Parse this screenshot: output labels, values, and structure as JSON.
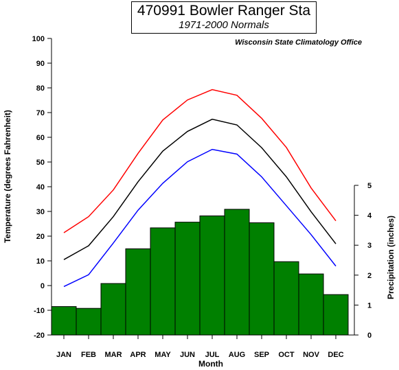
{
  "chart_data": {
    "type": "bar+line",
    "title": "470991 Bowler Ranger Sta",
    "subtitle": "1971-2000 Normals",
    "source": "Wisconsin State Climatology Office",
    "xlabel": "Month",
    "ylabel_left": "Temperature (degrees Fahrenheit)",
    "ylabel_right": "Precipitation (inches)",
    "categories": [
      "JAN",
      "FEB",
      "MAR",
      "APR",
      "MAY",
      "JUN",
      "JUL",
      "AUG",
      "SEP",
      "OCT",
      "NOV",
      "DEC"
    ],
    "ylim_left": [
      -20,
      100
    ],
    "yticks_left": [
      -20,
      -10,
      0,
      10,
      20,
      30,
      40,
      50,
      60,
      70,
      80,
      90,
      100
    ],
    "ylim_right": [
      0,
      5
    ],
    "yticks_right": [
      0,
      1,
      2,
      3,
      4,
      5
    ],
    "precipitation": {
      "color": "#008000",
      "values": [
        0.95,
        0.89,
        1.72,
        2.88,
        3.58,
        3.77,
        3.98,
        4.2,
        3.75,
        2.45,
        2.04,
        1.35
      ]
    },
    "series": [
      {
        "color": "#ff0000",
        "values": [
          21.4,
          27.9,
          38.7,
          53.5,
          67.0,
          75.1,
          79.3,
          77.0,
          67.7,
          55.9,
          39.5,
          26.2
        ]
      },
      {
        "color": "#000000",
        "values": [
          10.5,
          16.1,
          27.9,
          42.0,
          54.4,
          62.4,
          67.3,
          65.0,
          55.8,
          44.0,
          29.9,
          16.9
        ]
      },
      {
        "color": "#0000ff",
        "values": [
          -0.4,
          4.4,
          17.2,
          30.5,
          41.4,
          50.1,
          55.1,
          53.2,
          44.0,
          32.3,
          20.6,
          7.9
        ]
      }
    ]
  }
}
